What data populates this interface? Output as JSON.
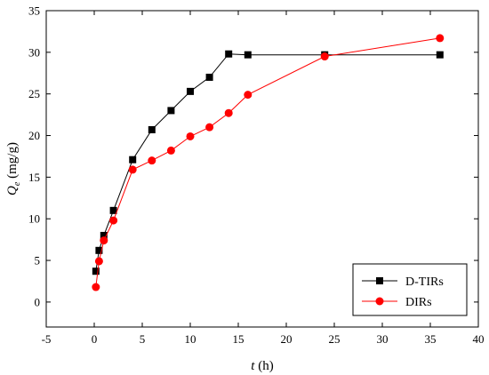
{
  "chart_data": {
    "type": "line",
    "xlabel": {
      "var": "t",
      "unit": " (h)"
    },
    "ylabel": {
      "var": "Q",
      "sub": "e",
      "unit": " (mg/g)"
    },
    "xlim": [
      -5,
      40
    ],
    "ylim": [
      -3,
      35
    ],
    "xticks": [
      -5,
      0,
      5,
      10,
      15,
      20,
      25,
      30,
      35,
      40
    ],
    "yticks": [
      0,
      5,
      10,
      15,
      20,
      25,
      30,
      35
    ],
    "grid": false,
    "legend": "bottom-right",
    "series": [
      {
        "name": "D-TIRs",
        "color": "#000000",
        "marker": "square",
        "points": [
          [
            0.17,
            3.7
          ],
          [
            0.5,
            6.2
          ],
          [
            1,
            8.0
          ],
          [
            2,
            11.0
          ],
          [
            4,
            17.1
          ],
          [
            6,
            20.7
          ],
          [
            8,
            23.0
          ],
          [
            10,
            25.3
          ],
          [
            12,
            27.0
          ],
          [
            14,
            29.8
          ],
          [
            16,
            29.7
          ],
          [
            24,
            29.7
          ],
          [
            36,
            29.7
          ]
        ]
      },
      {
        "name": "DIRs",
        "color": "#ff0000",
        "marker": "circle",
        "points": [
          [
            0.17,
            1.8
          ],
          [
            0.5,
            4.9
          ],
          [
            1,
            7.4
          ],
          [
            2,
            9.8
          ],
          [
            4,
            15.9
          ],
          [
            6,
            17.0
          ],
          [
            8,
            18.2
          ],
          [
            10,
            19.9
          ],
          [
            12,
            21.0
          ],
          [
            14,
            22.7
          ],
          [
            16,
            24.9
          ],
          [
            24,
            29.5
          ],
          [
            36,
            31.7
          ]
        ]
      }
    ]
  }
}
